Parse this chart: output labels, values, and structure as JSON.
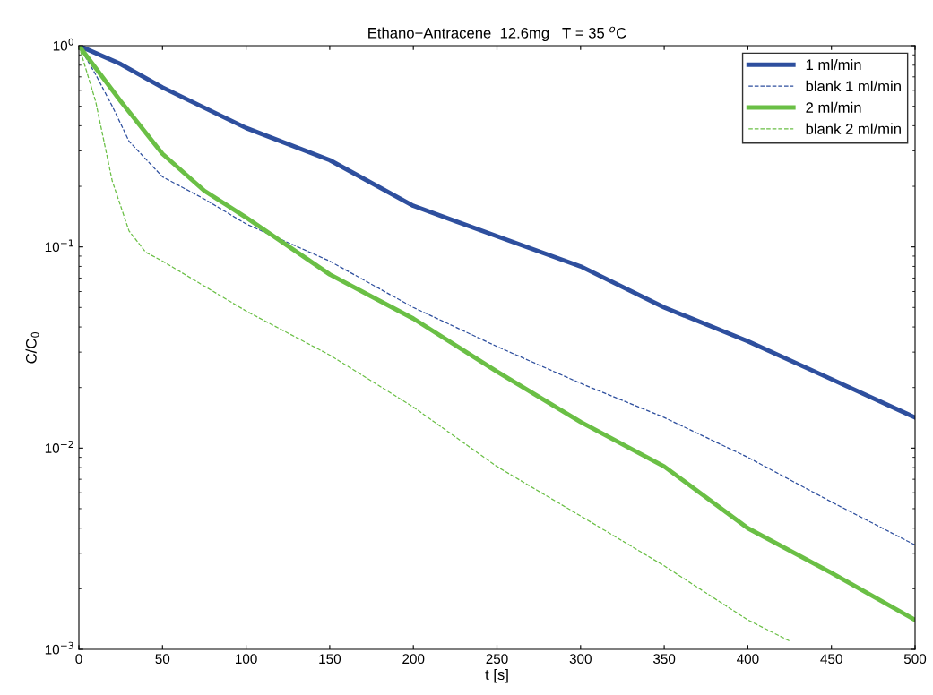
{
  "chart_data": {
    "type": "line",
    "title": "Ethano−Antracene  12.6mg   T = 35 $^{o}$C",
    "xlabel": "t [s]",
    "ylabel": "C/C$_{0}$",
    "log": "y",
    "xlim": [
      0,
      500
    ],
    "ylim": [
      0.001,
      1
    ],
    "xticks": [
      0,
      50,
      100,
      150,
      200,
      250,
      300,
      350,
      400,
      450,
      500
    ],
    "yticks": [
      {
        "value": 0.001,
        "label": "10$^{−3}$"
      },
      {
        "value": 0.01,
        "label": "10$^{−2}$"
      },
      {
        "value": 0.1,
        "label": "10$^{−1}$"
      },
      {
        "value": 1,
        "label": "10$^{0}$"
      }
    ],
    "grid": false,
    "legend": "top right",
    "series": [
      {
        "name": "1 ml/min",
        "color": "#2e4f9e",
        "line_style": "solid",
        "x": [
          0,
          25,
          50,
          100,
          150,
          200,
          250,
          300,
          350,
          400,
          450,
          500
        ],
        "values": [
          1,
          0.81,
          0.62,
          0.39,
          0.27,
          0.16,
          0.113,
          0.08,
          0.05,
          0.034,
          0.022,
          0.0142
        ]
      },
      {
        "name": "blank 1 ml/min",
        "color": "#2e4f9e",
        "line_style": "dashed",
        "x": [
          0,
          10,
          20,
          30,
          50,
          75,
          100,
          150,
          200,
          250,
          300,
          350,
          400,
          450,
          500
        ],
        "values": [
          1,
          0.72,
          0.5,
          0.335,
          0.223,
          0.173,
          0.13,
          0.085,
          0.05,
          0.032,
          0.021,
          0.0142,
          0.009,
          0.0054,
          0.0033
        ]
      },
      {
        "name": "2 ml/min",
        "color": "#6abf45",
        "line_style": "solid",
        "x": [
          0,
          25,
          50,
          75,
          100,
          150,
          200,
          250,
          300,
          350,
          400,
          450,
          500
        ],
        "values": [
          1,
          0.53,
          0.29,
          0.19,
          0.14,
          0.073,
          0.044,
          0.024,
          0.0135,
          0.0081,
          0.004,
          0.0024,
          0.0014
        ]
      },
      {
        "name": "blank 2 ml/min",
        "color": "#6abf45",
        "line_style": "dashed",
        "x": [
          0,
          10,
          20,
          30,
          40,
          50,
          100,
          150,
          200,
          250,
          300,
          350,
          400,
          425
        ],
        "values": [
          1,
          0.53,
          0.212,
          0.12,
          0.094,
          0.085,
          0.048,
          0.029,
          0.016,
          0.0081,
          0.0046,
          0.0026,
          0.0014,
          0.0011
        ]
      }
    ]
  }
}
